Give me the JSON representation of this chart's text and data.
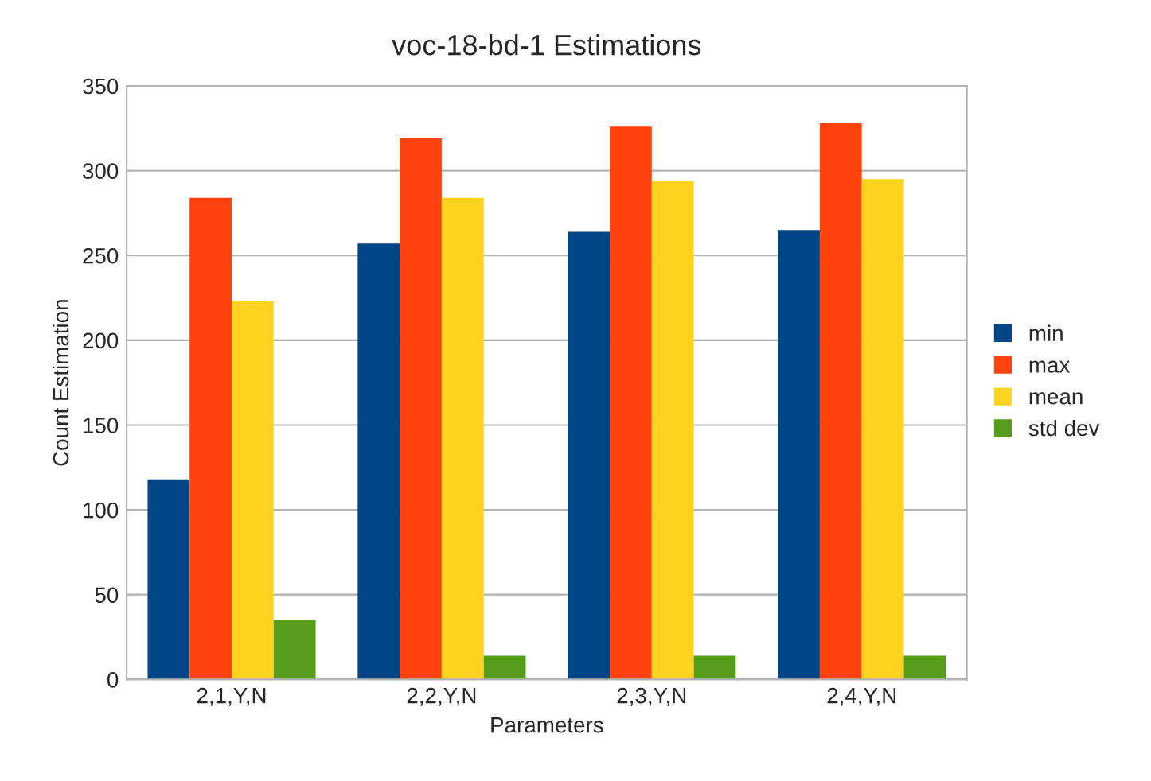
{
  "chart_data": {
    "type": "bar",
    "title": "voc-18-bd-1 Estimations",
    "xlabel": "Parameters",
    "ylabel": "Count Estimation",
    "categories": [
      "2,1,Y,N",
      "2,2,Y,N",
      "2,3,Y,N",
      "2,4,Y,N"
    ],
    "series": [
      {
        "name": "min",
        "color": "#004586",
        "values": [
          118,
          257,
          264,
          265
        ]
      },
      {
        "name": "max",
        "color": "#ff420e",
        "values": [
          284,
          319,
          326,
          328
        ]
      },
      {
        "name": "mean",
        "color": "#ffd320",
        "values": [
          223,
          284,
          294,
          295
        ]
      },
      {
        "name": "std dev",
        "color": "#579d1c",
        "values": [
          35,
          14,
          14,
          14
        ]
      }
    ],
    "ylim": [
      0,
      350
    ],
    "yticks": [
      0,
      50,
      100,
      150,
      200,
      250,
      300,
      350
    ],
    "grid": "y",
    "legend": "right"
  }
}
